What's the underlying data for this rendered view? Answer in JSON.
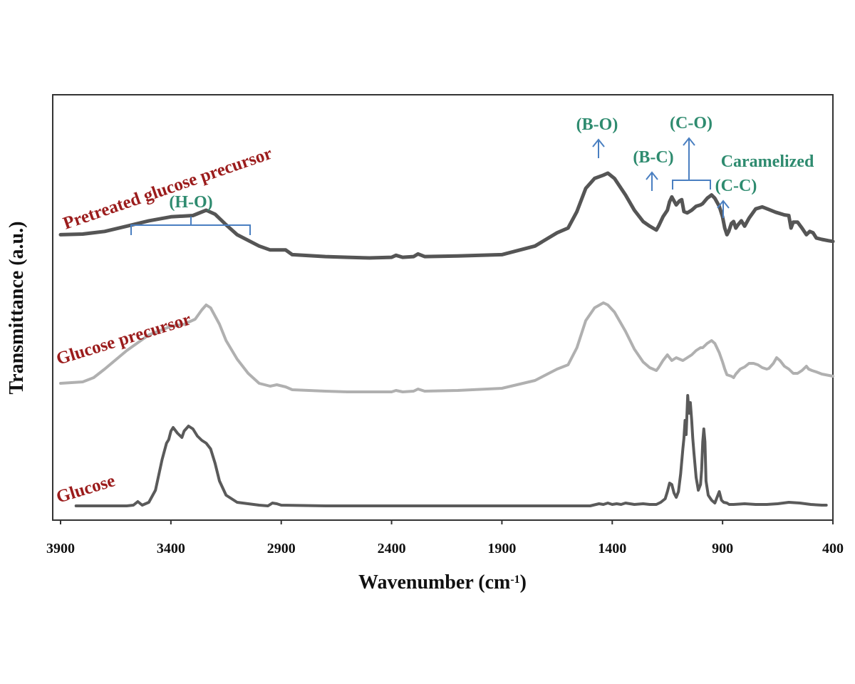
{
  "chart_data": {
    "type": "line",
    "xlabel": "Wavenumber",
    "xlabel_unit": "(cm",
    "xlabel_sup": "-1",
    "xlabel_close": ")",
    "ylabel": "Transmittance (a.u.)",
    "xlim": [
      3900,
      400
    ],
    "x_reversed": true,
    "x_ticks": [
      3900,
      3400,
      2900,
      2400,
      1900,
      1400,
      900,
      400
    ],
    "colors": {
      "series_label": "#9b1c1c",
      "annotation_text": "#2e8b6f",
      "annotation_line": "#4a7fc1"
    },
    "series": [
      {
        "name": "Pretreated glucose precursor",
        "color": "#555555",
        "points": [
          [
            3900,
            0.35
          ],
          [
            3800,
            0.36
          ],
          [
            3700,
            0.4
          ],
          [
            3600,
            0.48
          ],
          [
            3500,
            0.56
          ],
          [
            3400,
            0.62
          ],
          [
            3300,
            0.64
          ],
          [
            3240,
            0.72
          ],
          [
            3200,
            0.66
          ],
          [
            3150,
            0.5
          ],
          [
            3100,
            0.35
          ],
          [
            3000,
            0.18
          ],
          [
            2950,
            0.12
          ],
          [
            2880,
            0.12
          ],
          [
            2850,
            0.05
          ],
          [
            2700,
            0.02
          ],
          [
            2600,
            0.01
          ],
          [
            2500,
            0.0
          ],
          [
            2400,
            0.01
          ],
          [
            2380,
            0.04
          ],
          [
            2350,
            0.01
          ],
          [
            2300,
            0.02
          ],
          [
            2280,
            0.06
          ],
          [
            2250,
            0.02
          ],
          [
            2100,
            0.03
          ],
          [
            1900,
            0.05
          ],
          [
            1750,
            0.18
          ],
          [
            1650,
            0.38
          ],
          [
            1600,
            0.45
          ],
          [
            1560,
            0.7
          ],
          [
            1520,
            1.05
          ],
          [
            1480,
            1.2
          ],
          [
            1440,
            1.25
          ],
          [
            1420,
            1.28
          ],
          [
            1390,
            1.2
          ],
          [
            1340,
            0.95
          ],
          [
            1300,
            0.72
          ],
          [
            1260,
            0.55
          ],
          [
            1230,
            0.48
          ],
          [
            1200,
            0.42
          ],
          [
            1190,
            0.48
          ],
          [
            1170,
            0.62
          ],
          [
            1150,
            0.72
          ],
          [
            1140,
            0.85
          ],
          [
            1130,
            0.92
          ],
          [
            1110,
            0.8
          ],
          [
            1095,
            0.86
          ],
          [
            1085,
            0.88
          ],
          [
            1075,
            0.7
          ],
          [
            1060,
            0.68
          ],
          [
            1040,
            0.72
          ],
          [
            1020,
            0.78
          ],
          [
            1000,
            0.8
          ],
          [
            990,
            0.82
          ],
          [
            970,
            0.9
          ],
          [
            950,
            0.95
          ],
          [
            935,
            0.9
          ],
          [
            915,
            0.78
          ],
          [
            900,
            0.62
          ],
          [
            890,
            0.45
          ],
          [
            880,
            0.35
          ],
          [
            872,
            0.4
          ],
          [
            860,
            0.52
          ],
          [
            850,
            0.55
          ],
          [
            840,
            0.45
          ],
          [
            830,
            0.5
          ],
          [
            815,
            0.56
          ],
          [
            800,
            0.48
          ],
          [
            780,
            0.6
          ],
          [
            750,
            0.74
          ],
          [
            720,
            0.77
          ],
          [
            690,
            0.73
          ],
          [
            660,
            0.69
          ],
          [
            640,
            0.67
          ],
          [
            620,
            0.65
          ],
          [
            600,
            0.64
          ],
          [
            590,
            0.45
          ],
          [
            580,
            0.54
          ],
          [
            560,
            0.54
          ],
          [
            540,
            0.45
          ],
          [
            520,
            0.35
          ],
          [
            505,
            0.4
          ],
          [
            490,
            0.38
          ],
          [
            475,
            0.3
          ],
          [
            450,
            0.28
          ],
          [
            420,
            0.26
          ],
          [
            400,
            0.25
          ]
        ]
      },
      {
        "name": "Glucose precursor",
        "color": "#b0b0b0",
        "points": [
          [
            3900,
            0.12
          ],
          [
            3800,
            0.14
          ],
          [
            3750,
            0.2
          ],
          [
            3700,
            0.32
          ],
          [
            3600,
            0.58
          ],
          [
            3500,
            0.8
          ],
          [
            3400,
            0.92
          ],
          [
            3340,
            0.95
          ],
          [
            3290,
            1.02
          ],
          [
            3260,
            1.15
          ],
          [
            3240,
            1.22
          ],
          [
            3220,
            1.18
          ],
          [
            3180,
            0.95
          ],
          [
            3150,
            0.72
          ],
          [
            3100,
            0.46
          ],
          [
            3050,
            0.26
          ],
          [
            3000,
            0.12
          ],
          [
            2950,
            0.08
          ],
          [
            2920,
            0.1
          ],
          [
            2880,
            0.07
          ],
          [
            2850,
            0.03
          ],
          [
            2700,
            0.01
          ],
          [
            2600,
            0.0
          ],
          [
            2500,
            0.0
          ],
          [
            2400,
            0.0
          ],
          [
            2380,
            0.02
          ],
          [
            2350,
            0.0
          ],
          [
            2300,
            0.01
          ],
          [
            2280,
            0.04
          ],
          [
            2250,
            0.01
          ],
          [
            2100,
            0.02
          ],
          [
            1900,
            0.05
          ],
          [
            1750,
            0.16
          ],
          [
            1650,
            0.32
          ],
          [
            1600,
            0.38
          ],
          [
            1560,
            0.62
          ],
          [
            1520,
            1.0
          ],
          [
            1480,
            1.18
          ],
          [
            1440,
            1.25
          ],
          [
            1420,
            1.22
          ],
          [
            1390,
            1.12
          ],
          [
            1340,
            0.85
          ],
          [
            1300,
            0.6
          ],
          [
            1260,
            0.42
          ],
          [
            1230,
            0.34
          ],
          [
            1200,
            0.3
          ],
          [
            1190,
            0.34
          ],
          [
            1170,
            0.44
          ],
          [
            1150,
            0.52
          ],
          [
            1140,
            0.48
          ],
          [
            1130,
            0.44
          ],
          [
            1110,
            0.48
          ],
          [
            1095,
            0.46
          ],
          [
            1080,
            0.44
          ],
          [
            1060,
            0.48
          ],
          [
            1040,
            0.52
          ],
          [
            1020,
            0.58
          ],
          [
            1000,
            0.62
          ],
          [
            990,
            0.62
          ],
          [
            970,
            0.68
          ],
          [
            950,
            0.72
          ],
          [
            935,
            0.68
          ],
          [
            915,
            0.55
          ],
          [
            900,
            0.42
          ],
          [
            890,
            0.32
          ],
          [
            880,
            0.24
          ],
          [
            860,
            0.22
          ],
          [
            850,
            0.2
          ],
          [
            840,
            0.25
          ],
          [
            820,
            0.32
          ],
          [
            800,
            0.35
          ],
          [
            780,
            0.4
          ],
          [
            760,
            0.4
          ],
          [
            740,
            0.38
          ],
          [
            720,
            0.34
          ],
          [
            700,
            0.32
          ],
          [
            690,
            0.33
          ],
          [
            670,
            0.4
          ],
          [
            655,
            0.48
          ],
          [
            640,
            0.44
          ],
          [
            620,
            0.36
          ],
          [
            600,
            0.32
          ],
          [
            580,
            0.26
          ],
          [
            560,
            0.26
          ],
          [
            540,
            0.3
          ],
          [
            520,
            0.36
          ],
          [
            510,
            0.32
          ],
          [
            495,
            0.3
          ],
          [
            475,
            0.28
          ],
          [
            450,
            0.25
          ],
          [
            400,
            0.22
          ]
        ]
      },
      {
        "name": "Glucose",
        "color": "#5a5a5a",
        "points": [
          [
            3830,
            0.0
          ],
          [
            3700,
            0.0
          ],
          [
            3600,
            0.0
          ],
          [
            3570,
            0.01
          ],
          [
            3550,
            0.06
          ],
          [
            3530,
            0.01
          ],
          [
            3500,
            0.05
          ],
          [
            3470,
            0.22
          ],
          [
            3440,
            0.65
          ],
          [
            3420,
            0.88
          ],
          [
            3410,
            0.93
          ],
          [
            3400,
            1.05
          ],
          [
            3390,
            1.1
          ],
          [
            3370,
            1.02
          ],
          [
            3350,
            0.96
          ],
          [
            3340,
            1.05
          ],
          [
            3320,
            1.12
          ],
          [
            3300,
            1.08
          ],
          [
            3280,
            0.98
          ],
          [
            3260,
            0.92
          ],
          [
            3240,
            0.88
          ],
          [
            3220,
            0.8
          ],
          [
            3200,
            0.6
          ],
          [
            3180,
            0.35
          ],
          [
            3150,
            0.15
          ],
          [
            3100,
            0.05
          ],
          [
            3000,
            0.01
          ],
          [
            2960,
            0.0
          ],
          [
            2940,
            0.04
          ],
          [
            2920,
            0.03
          ],
          [
            2900,
            0.01
          ],
          [
            2700,
            0.0
          ],
          [
            2500,
            0.0
          ],
          [
            2300,
            0.0
          ],
          [
            2100,
            0.0
          ],
          [
            1900,
            0.0
          ],
          [
            1700,
            0.0
          ],
          [
            1500,
            0.0
          ],
          [
            1460,
            0.03
          ],
          [
            1440,
            0.02
          ],
          [
            1420,
            0.04
          ],
          [
            1400,
            0.02
          ],
          [
            1380,
            0.03
          ],
          [
            1360,
            0.02
          ],
          [
            1340,
            0.04
          ],
          [
            1300,
            0.02
          ],
          [
            1260,
            0.03
          ],
          [
            1230,
            0.02
          ],
          [
            1200,
            0.02
          ],
          [
            1180,
            0.05
          ],
          [
            1160,
            0.1
          ],
          [
            1150,
            0.2
          ],
          [
            1140,
            0.32
          ],
          [
            1130,
            0.3
          ],
          [
            1120,
            0.18
          ],
          [
            1110,
            0.12
          ],
          [
            1100,
            0.2
          ],
          [
            1090,
            0.45
          ],
          [
            1080,
            0.8
          ],
          [
            1075,
            0.95
          ],
          [
            1070,
            1.2
          ],
          [
            1065,
            1.0
          ],
          [
            1058,
            1.55
          ],
          [
            1052,
            1.3
          ],
          [
            1046,
            1.45
          ],
          [
            1040,
            1.2
          ],
          [
            1035,
            0.95
          ],
          [
            1030,
            0.75
          ],
          [
            1020,
            0.4
          ],
          [
            1010,
            0.22
          ],
          [
            1000,
            0.3
          ],
          [
            995,
            0.5
          ],
          [
            990,
            0.9
          ],
          [
            985,
            1.08
          ],
          [
            980,
            0.9
          ],
          [
            975,
            0.35
          ],
          [
            965,
            0.15
          ],
          [
            950,
            0.08
          ],
          [
            935,
            0.04
          ],
          [
            925,
            0.12
          ],
          [
            915,
            0.2
          ],
          [
            905,
            0.08
          ],
          [
            895,
            0.05
          ],
          [
            880,
            0.04
          ],
          [
            870,
            0.02
          ],
          [
            850,
            0.02
          ],
          [
            800,
            0.03
          ],
          [
            750,
            0.02
          ],
          [
            700,
            0.02
          ],
          [
            650,
            0.03
          ],
          [
            600,
            0.05
          ],
          [
            550,
            0.04
          ],
          [
            500,
            0.02
          ],
          [
            450,
            0.01
          ],
          [
            430,
            0.01
          ]
        ]
      }
    ],
    "annotations": [
      {
        "label": "(H-O)"
      },
      {
        "label": "(B-O)"
      },
      {
        "label": "(B-C)"
      },
      {
        "label": "(C-O)"
      },
      {
        "label": "Caramelized"
      },
      {
        "label": "(C-C)"
      }
    ]
  }
}
